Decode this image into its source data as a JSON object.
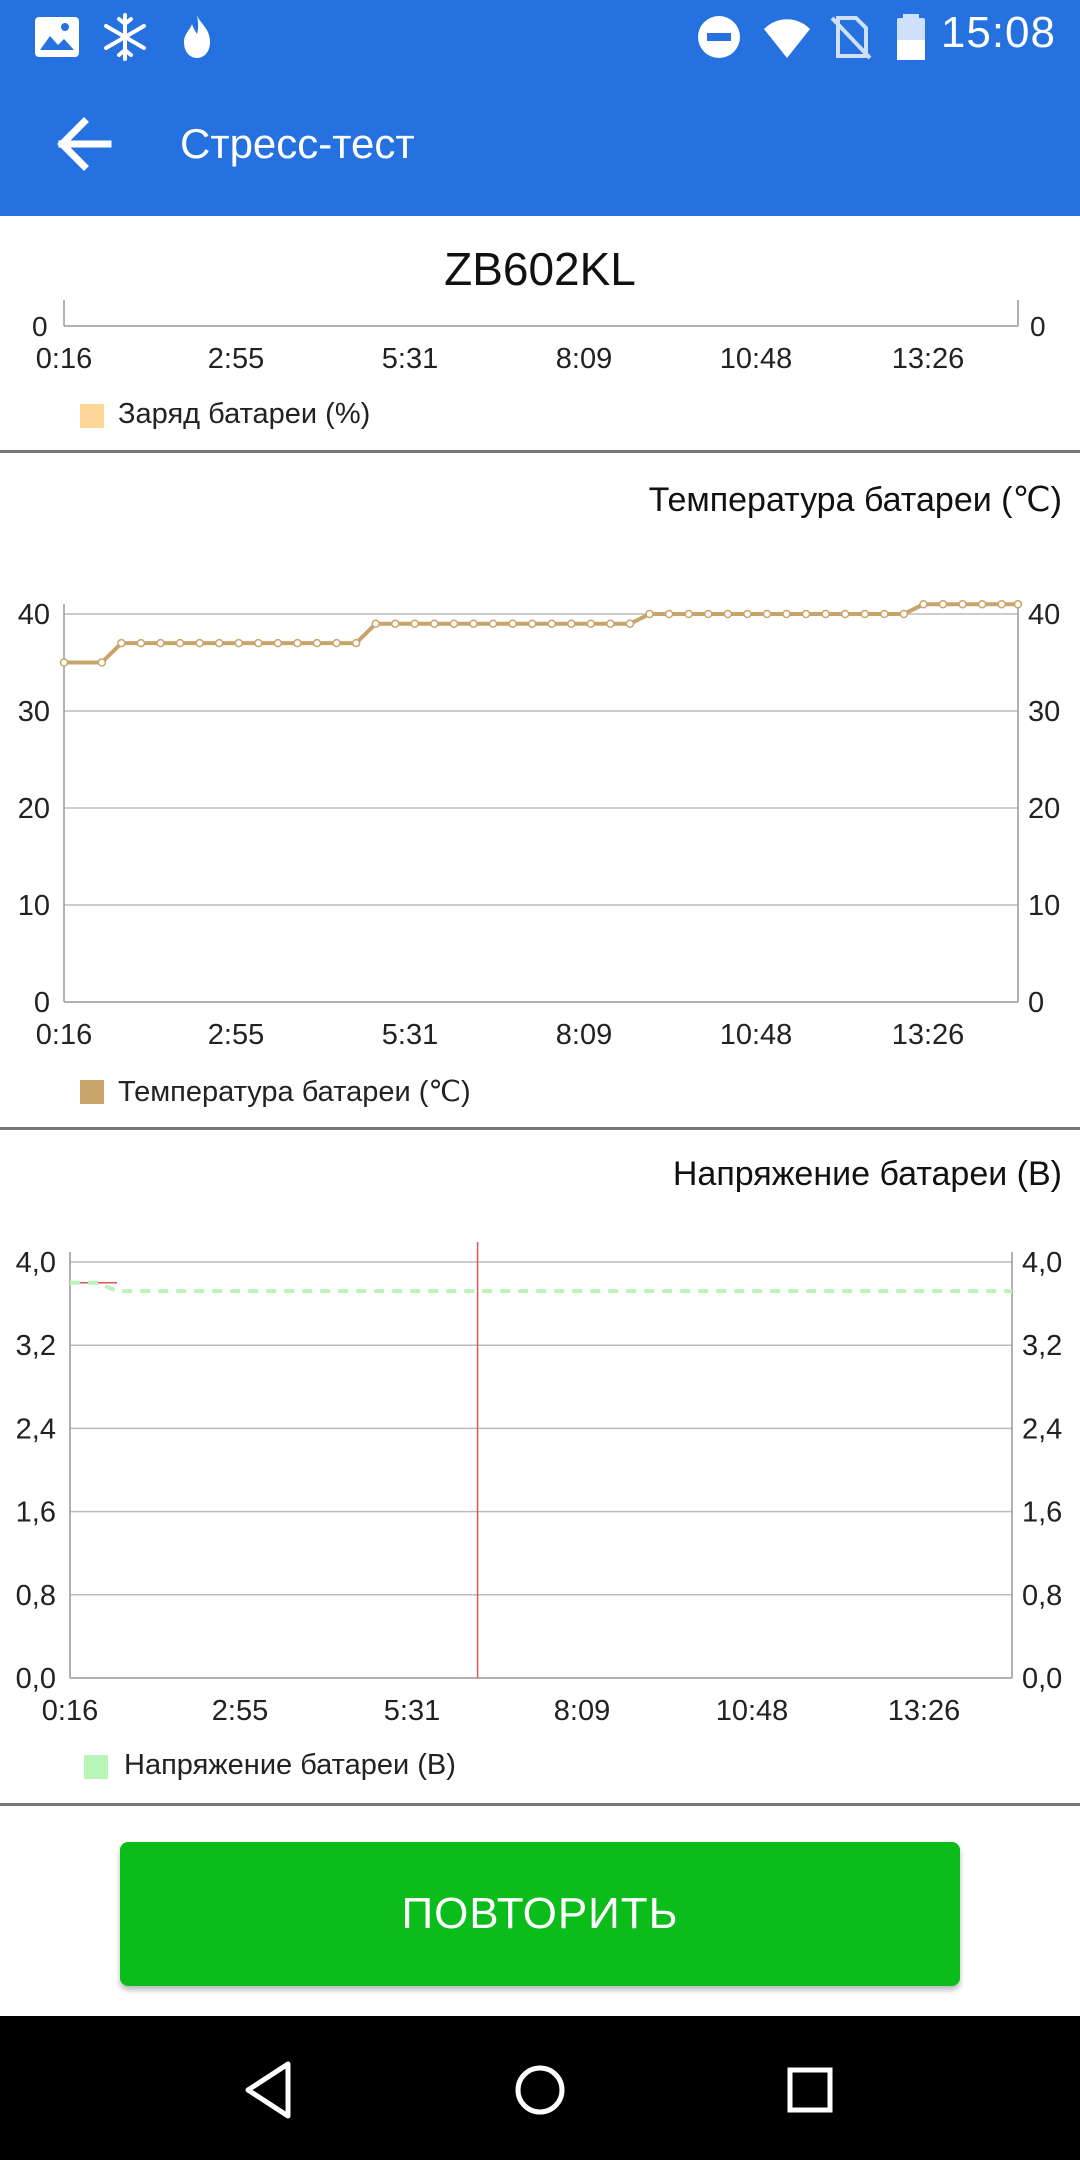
{
  "status_bar": {
    "time": "15:08",
    "left_icons": [
      "image-icon",
      "snowflake-icon",
      "flame-icon"
    ],
    "right_icons": [
      "do-not-disturb-icon",
      "wifi-icon",
      "no-sim-icon",
      "battery-icon"
    ]
  },
  "app_bar": {
    "title": "Стресс-тест",
    "color": "#2671e0"
  },
  "device_name": "ZB602KL",
  "charts": {
    "charge": {
      "legend": "Заряд батареи (%)",
      "left_zero": "0",
      "right_zero": "0",
      "color": "#ffd699"
    },
    "temperature": {
      "title": "Температура батареи (℃)",
      "legend": "Температура батареи (℃)",
      "color": "#c9a46a"
    },
    "voltage": {
      "title": "Напряжение батареи (В)",
      "legend": "Напряжение батареи (В)",
      "color": "#b9f4b9"
    }
  },
  "chart_data": [
    {
      "type": "line",
      "title": "",
      "x_tick_labels": [
        "0:16",
        "2:55",
        "5:31",
        "8:09",
        "10:48",
        "13:26"
      ],
      "y_visible_ticks": [
        "0"
      ],
      "series": [
        {
          "name": "Заряд батареи (%)",
          "values": []
        }
      ]
    },
    {
      "type": "line",
      "title": "Температура батареи (℃)",
      "x_tick_labels": [
        "0:16",
        "2:55",
        "5:31",
        "8:09",
        "10:48",
        "13:26"
      ],
      "x_range_minutes": [
        0.27,
        14.9
      ],
      "ylim": [
        0,
        40
      ],
      "y_tick_labels": [
        "0",
        "10",
        "20",
        "30",
        "40"
      ],
      "grid": true,
      "legend_position": "bottom-left",
      "series": [
        {
          "name": "Температура батареи (℃)",
          "x": [
            0.27,
            0.85,
            1.15,
            1.45,
            1.75,
            2.05,
            2.35,
            2.65,
            2.95,
            3.25,
            3.55,
            3.85,
            4.15,
            4.45,
            4.75,
            5.05,
            5.35,
            5.65,
            5.95,
            6.25,
            6.55,
            6.85,
            7.15,
            7.45,
            7.75,
            8.05,
            8.35,
            8.65,
            8.95,
            9.25,
            9.55,
            9.85,
            10.15,
            10.45,
            10.75,
            11.05,
            11.35,
            11.65,
            11.95,
            12.25,
            12.55,
            12.85,
            13.15,
            13.45,
            13.75,
            14.05,
            14.35,
            14.65,
            14.9
          ],
          "y": [
            35,
            35,
            37,
            37,
            37,
            37,
            37,
            37,
            37,
            37,
            37,
            37,
            37,
            37,
            37,
            39,
            39,
            39,
            39,
            39,
            39,
            39,
            39,
            39,
            39,
            39,
            39,
            39,
            39,
            40,
            40,
            40,
            40,
            40,
            40,
            40,
            40,
            40,
            40,
            40,
            40,
            40,
            40,
            41,
            41,
            41,
            41,
            41,
            41
          ]
        }
      ]
    },
    {
      "type": "line",
      "title": "Напряжение батареи (В)",
      "x_tick_labels": [
        "0:16",
        "2:55",
        "5:31",
        "8:09",
        "10:48",
        "13:26"
      ],
      "x_range_minutes": [
        0.27,
        14.9
      ],
      "ylim": [
        0,
        4.0
      ],
      "y_tick_labels": [
        "0,0",
        "0,8",
        "1,6",
        "2,4",
        "3,2",
        "4,0"
      ],
      "grid": true,
      "legend_position": "bottom-left",
      "marker_x_minutes": 6.6,
      "series": [
        {
          "name": "Напряжение батареи (В)",
          "x": [
            0.27,
            0.7,
            1.0,
            2.0,
            3.0,
            4.0,
            5.0,
            6.0,
            7.0,
            8.0,
            9.0,
            10.0,
            11.0,
            12.0,
            13.0,
            14.0,
            14.9
          ],
          "y": [
            3.8,
            3.8,
            3.72,
            3.72,
            3.72,
            3.72,
            3.72,
            3.72,
            3.72,
            3.72,
            3.72,
            3.72,
            3.72,
            3.72,
            3.72,
            3.72,
            3.72
          ]
        }
      ]
    }
  ],
  "actions": {
    "repeat_label": "ПОВТОРИТЬ",
    "repeat_color": "#0abd1b"
  },
  "nav_bar": {
    "icons": [
      "back-triangle-icon",
      "home-circle-icon",
      "recents-square-icon"
    ]
  }
}
